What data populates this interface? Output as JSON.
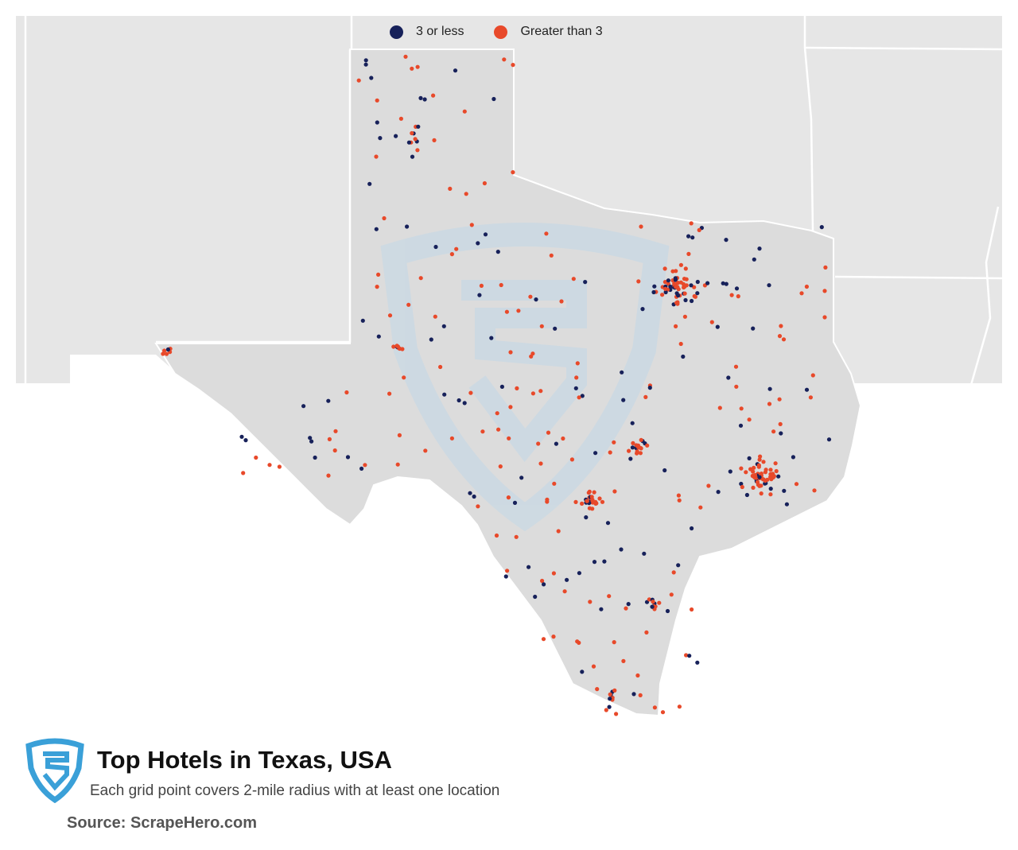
{
  "legend": {
    "items": [
      {
        "label": "3 or less",
        "color": "#17215a"
      },
      {
        "label": "Greater than 3",
        "color": "#e8492a"
      }
    ]
  },
  "title": "Top Hotels in Texas, USA",
  "subtitle": "Each grid point covers 2-mile radius with at least one location",
  "source": "Source: ScrapeHero.com",
  "colors": {
    "land": "#e6e6e6",
    "texas": "#dcdcdc",
    "border": "#ffffff",
    "low": "#17215a",
    "high": "#e8492a",
    "brand": "#3aa0d8",
    "watermark": "#c9d9e4"
  },
  "icons": {
    "logo": "scrapehero-shield-icon"
  }
}
